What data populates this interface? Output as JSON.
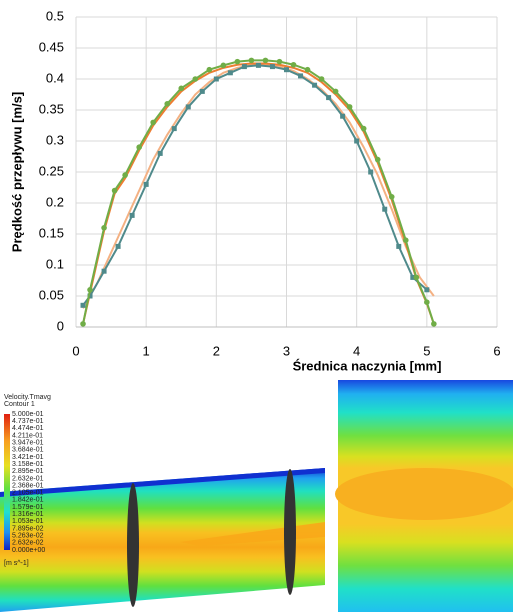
{
  "chart_data": {
    "type": "line",
    "x_label": "Średnica naczynia [mm]",
    "y_label": "Prędkość przepływu [m/s]",
    "xlim": [
      0,
      6
    ],
    "xticks": [
      0,
      1,
      2,
      3,
      4,
      5,
      6
    ],
    "ylim": [
      0,
      0.5
    ],
    "yticks": [
      0,
      0.05,
      0.1,
      0.15,
      0.2,
      0.25,
      0.3,
      0.35,
      0.4,
      0.45,
      0.5
    ],
    "grid": true,
    "series": [
      {
        "color": "#f4b183",
        "marker": "none",
        "x": [
          0.1,
          0.3,
          0.5,
          0.7,
          0.9,
          1.1,
          1.3,
          1.5,
          1.7,
          1.9,
          2.1,
          2.3,
          2.5,
          2.7,
          2.9,
          3.1,
          3.3,
          3.5,
          3.7,
          3.9,
          4.1,
          4.3,
          4.5,
          4.7,
          4.9,
          5.1
        ],
        "values": [
          0.03,
          0.07,
          0.12,
          0.17,
          0.22,
          0.27,
          0.31,
          0.345,
          0.375,
          0.395,
          0.41,
          0.418,
          0.422,
          0.423,
          0.42,
          0.413,
          0.4,
          0.383,
          0.36,
          0.33,
          0.29,
          0.245,
          0.19,
          0.13,
          0.08,
          0.05
        ]
      },
      {
        "color": "#ed7d31",
        "marker": "none",
        "x": [
          0.1,
          0.2,
          0.4,
          0.55,
          0.7,
          0.9,
          1.1,
          1.3,
          1.5,
          1.7,
          1.9,
          2.1,
          2.3,
          2.5,
          2.7,
          2.9,
          3.1,
          3.3,
          3.5,
          3.7,
          3.9,
          4.1,
          4.3,
          4.5,
          4.7,
          4.85,
          5.0,
          5.1
        ],
        "values": [
          0.005,
          0.055,
          0.155,
          0.215,
          0.24,
          0.285,
          0.325,
          0.355,
          0.38,
          0.397,
          0.41,
          0.418,
          0.423,
          0.425,
          0.425,
          0.423,
          0.418,
          0.41,
          0.395,
          0.375,
          0.35,
          0.315,
          0.265,
          0.205,
          0.135,
          0.078,
          0.038,
          0.005
        ]
      },
      {
        "color": "#4f8a8b",
        "marker": "square",
        "x": [
          0.1,
          0.2,
          0.4,
          0.6,
          0.8,
          1.0,
          1.2,
          1.4,
          1.6,
          1.8,
          2.0,
          2.2,
          2.4,
          2.6,
          2.8,
          3.0,
          3.2,
          3.4,
          3.6,
          3.8,
          4.0,
          4.2,
          4.4,
          4.6,
          4.8,
          5.0
        ],
        "values": [
          0.035,
          0.05,
          0.09,
          0.13,
          0.18,
          0.23,
          0.28,
          0.32,
          0.355,
          0.38,
          0.4,
          0.41,
          0.42,
          0.422,
          0.42,
          0.415,
          0.405,
          0.39,
          0.37,
          0.34,
          0.3,
          0.25,
          0.19,
          0.13,
          0.08,
          0.06
        ]
      },
      {
        "color": "#70ad47",
        "marker": "circle",
        "x": [
          0.1,
          0.2,
          0.4,
          0.55,
          0.7,
          0.9,
          1.1,
          1.3,
          1.5,
          1.7,
          1.9,
          2.1,
          2.3,
          2.5,
          2.7,
          2.9,
          3.1,
          3.3,
          3.5,
          3.7,
          3.9,
          4.1,
          4.3,
          4.5,
          4.7,
          4.85,
          5.0,
          5.1
        ],
        "values": [
          0.005,
          0.06,
          0.16,
          0.22,
          0.245,
          0.29,
          0.33,
          0.36,
          0.385,
          0.4,
          0.415,
          0.422,
          0.428,
          0.43,
          0.43,
          0.428,
          0.423,
          0.415,
          0.4,
          0.38,
          0.355,
          0.32,
          0.27,
          0.21,
          0.14,
          0.08,
          0.04,
          0.005
        ]
      }
    ]
  },
  "contour": {
    "title": "Velocity.Tmavg",
    "subtitle": "Contour 1",
    "levels": [
      "5.000e-01",
      "4.737e-01",
      "4.474e-01",
      "4.211e-01",
      "3.947e-01",
      "3.684e-01",
      "3.421e-01",
      "3.158e-01",
      "2.895e-01",
      "2.632e-01",
      "2.368e-01",
      "2.105e-01",
      "1.842e-01",
      "1.579e-01",
      "1.316e-01",
      "1.053e-01",
      "7.895e-02",
      "5.263e-02",
      "2.632e-02",
      "0.000e+00"
    ],
    "unit": "[m s^-1]"
  }
}
